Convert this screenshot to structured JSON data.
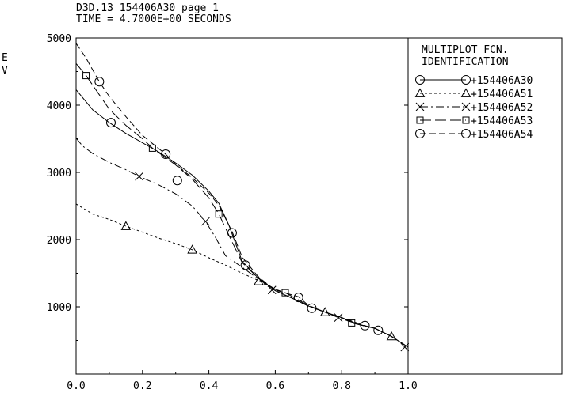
{
  "header": {
    "line1": "D3D.13 154406A30 page 1",
    "line2": "TIME = 4.7000E+00 SECONDS"
  },
  "ylabel_chars": [
    "E",
    "V"
  ],
  "legend": {
    "title_line1": "MULTIPLOT FCN.",
    "title_line2": "IDENTIFICATION",
    "entries": [
      "+154406A30",
      "+154406A51",
      "+154406A52",
      "+154406A53",
      "+154406A54"
    ]
  },
  "chart_data": {
    "type": "line",
    "title": "",
    "xlabel": "",
    "ylabel": "EV",
    "xlim": [
      0.0,
      1.0
    ],
    "ylim": [
      0,
      5000
    ],
    "x_ticks": [
      "0.0",
      "0.2",
      "0.4",
      "0.6",
      "0.8",
      "1.0"
    ],
    "x_tick_values": [
      0.0,
      0.2,
      0.4,
      0.6,
      0.8,
      1.0
    ],
    "y_ticks": [
      "1000",
      "2000",
      "3000",
      "4000",
      "5000"
    ],
    "y_tick_values": [
      1000,
      2000,
      3000,
      4000,
      5000
    ],
    "grid": false,
    "legend_position": "right",
    "series": [
      {
        "name": "+154406A30",
        "line_style": "solid",
        "marker": "circle",
        "x": [
          0.0,
          0.05,
          0.1,
          0.15,
          0.2,
          0.25,
          0.3,
          0.35,
          0.4,
          0.43,
          0.46,
          0.5,
          0.55,
          0.6,
          0.65,
          0.7,
          0.75,
          0.8,
          0.85,
          0.9,
          0.95,
          1.0
        ],
        "y": [
          4230,
          3930,
          3740,
          3580,
          3440,
          3300,
          3140,
          2960,
          2720,
          2540,
          2220,
          1680,
          1420,
          1240,
          1130,
          1010,
          920,
          840,
          740,
          680,
          560,
          400
        ],
        "marker_x": [
          0.105,
          0.305,
          0.51,
          0.71,
          0.91
        ],
        "marker_y": [
          3740,
          2880,
          1620,
          980,
          650
        ]
      },
      {
        "name": "+154406A51",
        "line_style": "dotted",
        "marker": "triangle",
        "x": [
          0.0,
          0.05,
          0.1,
          0.15,
          0.2,
          0.25,
          0.3,
          0.35,
          0.4,
          0.45,
          0.5,
          0.55,
          0.6,
          0.65,
          0.7,
          0.75,
          0.8,
          0.85,
          0.9,
          0.95,
          1.0
        ],
        "y": [
          2530,
          2380,
          2300,
          2200,
          2110,
          2020,
          1940,
          1850,
          1730,
          1620,
          1500,
          1390,
          1240,
          1130,
          1010,
          920,
          840,
          740,
          680,
          560,
          400
        ],
        "marker_x": [
          0.15,
          0.35,
          0.55,
          0.75,
          0.95
        ],
        "marker_y": [
          2200,
          1850,
          1380,
          920,
          560
        ]
      },
      {
        "name": "+154406A52",
        "line_style": "dashdot",
        "marker": "x",
        "x": [
          0.0,
          0.02,
          0.05,
          0.1,
          0.15,
          0.19,
          0.25,
          0.3,
          0.35,
          0.39,
          0.42,
          0.45,
          0.5,
          0.55,
          0.6,
          0.65,
          0.7,
          0.75,
          0.79,
          0.85,
          0.9,
          0.95,
          1.0
        ],
        "y": [
          3510,
          3390,
          3280,
          3150,
          3040,
          2940,
          2810,
          2680,
          2500,
          2270,
          2030,
          1760,
          1590,
          1410,
          1240,
          1130,
          1010,
          920,
          840,
          740,
          680,
          560,
          400
        ],
        "marker_x": [
          0.19,
          0.39,
          0.59,
          0.79,
          0.99
        ],
        "marker_y": [
          2940,
          2270,
          1250,
          840,
          400
        ]
      },
      {
        "name": "+154406A53",
        "line_style": "longdash",
        "marker": "square",
        "x": [
          0.0,
          0.03,
          0.1,
          0.15,
          0.2,
          0.23,
          0.3,
          0.35,
          0.4,
          0.43,
          0.46,
          0.5,
          0.55,
          0.6,
          0.63,
          0.7,
          0.75,
          0.8,
          0.83,
          0.9,
          0.95,
          1.0
        ],
        "y": [
          4620,
          4440,
          3940,
          3700,
          3500,
          3360,
          3110,
          2900,
          2620,
          2380,
          2070,
          1660,
          1420,
          1260,
          1210,
          1020,
          920,
          840,
          760,
          680,
          560,
          400
        ],
        "marker_x": [
          0.03,
          0.23,
          0.43,
          0.63,
          0.83
        ],
        "marker_y": [
          4440,
          3360,
          2380,
          1210,
          760
        ]
      },
      {
        "name": "+154406A54",
        "line_style": "dashed",
        "marker": "circle",
        "x": [
          0.0,
          0.03,
          0.07,
          0.1,
          0.15,
          0.2,
          0.27,
          0.3,
          0.35,
          0.4,
          0.43,
          0.47,
          0.5,
          0.55,
          0.6,
          0.67,
          0.7,
          0.75,
          0.8,
          0.87,
          0.9,
          0.95,
          1.0
        ],
        "y": [
          4920,
          4700,
          4350,
          4130,
          3830,
          3550,
          3270,
          3120,
          2920,
          2690,
          2510,
          2120,
          1740,
          1440,
          1250,
          1150,
          1020,
          920,
          840,
          720,
          680,
          560,
          400
        ],
        "marker_x": [
          0.07,
          0.27,
          0.47,
          0.67,
          0.87
        ],
        "marker_y": [
          4350,
          3270,
          2100,
          1140,
          720
        ]
      }
    ]
  }
}
